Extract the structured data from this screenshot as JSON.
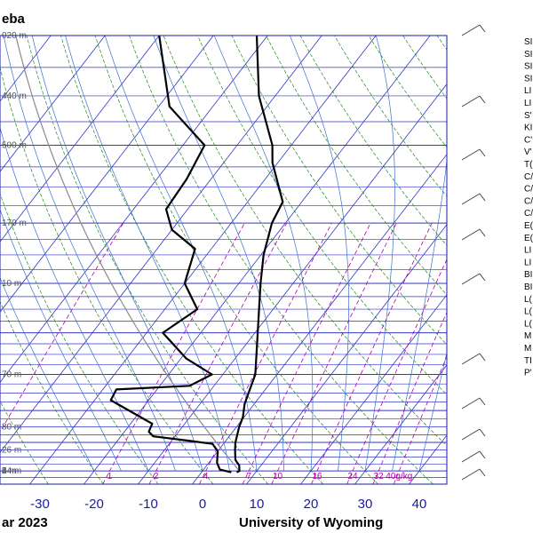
{
  "station_title": "eba",
  "footer_left": "ar 2023",
  "footer_right": "University of Wyoming",
  "colors": {
    "frame": "#1a1aa0",
    "isobar": "#3434c8",
    "isotherm": "#3434c8",
    "dry_adiabat": "#1f8a1f",
    "moist_adiabat": "#3a6fd0",
    "mixing_ratio": "#b000b0",
    "temperature": "#000000",
    "dewpoint": "#000000",
    "parcel": "#8a8a8a"
  },
  "chart_data": {
    "type": "skew-t",
    "title": "eba",
    "xlabel": "",
    "ylabel": "",
    "x_ticks": [
      "-30",
      "-20",
      "-10",
      "0",
      "10",
      "20",
      "30",
      "40"
    ],
    "mixing_ratio_labels": [
      "0.1",
      "1",
      "2",
      "4",
      "7",
      "10",
      "16",
      "24",
      "32",
      "40g/kg"
    ],
    "mixing_ratio_values": [
      0.1,
      1,
      2,
      4,
      7,
      10,
      16,
      24,
      32,
      40
    ],
    "height_labels": [
      {
        "text": "020 m",
        "p": 200
      },
      {
        "text": "440 m",
        "p": 250
      },
      {
        "text": "500 m",
        "p": 300
      },
      {
        "text": "170 m",
        "p": 400
      },
      {
        "text": "10 m",
        "p": 500
      },
      {
        "text": "70 m",
        "p": 700
      },
      {
        "text": "80 m",
        "p": 850
      },
      {
        "text": "54 m",
        "p": 1000
      },
      {
        "text": "26 m",
        "p": 925
      },
      {
        "text": "4 m",
        "p": 1000
      },
      {
        "text": "2 m",
        "p": 1000
      }
    ],
    "height_labels_shown": [
      "020 m",
      "440 m",
      "500 m",
      "170 m",
      "10 m",
      "70 m",
      "80 m",
      "54 m",
      "26 m",
      "4 m",
      "2 m"
    ],
    "temperature_profile": [
      {
        "p": 1005,
        "t": 6.5
      },
      {
        "p": 1000,
        "t": 6.8
      },
      {
        "p": 980,
        "t": 6.0
      },
      {
        "p": 960,
        "t": 4.5
      },
      {
        "p": 925,
        "t": 3.0
      },
      {
        "p": 900,
        "t": 2.0
      },
      {
        "p": 850,
        "t": 0.5
      },
      {
        "p": 820,
        "t": -0.2
      },
      {
        "p": 780,
        "t": -1.8
      },
      {
        "p": 700,
        "t": -4.0
      },
      {
        "p": 600,
        "t": -9.5
      },
      {
        "p": 500,
        "t": -16.0
      },
      {
        "p": 450,
        "t": -19.5
      },
      {
        "p": 400,
        "t": -22.5
      },
      {
        "p": 370,
        "t": -23.5
      },
      {
        "p": 320,
        "t": -31.0
      },
      {
        "p": 300,
        "t": -33.5
      },
      {
        "p": 250,
        "t": -43.0
      },
      {
        "p": 200,
        "t": -52.0
      }
    ],
    "dewpoint_profile": [
      {
        "p": 1005,
        "t": 5.5
      },
      {
        "p": 995,
        "t": 3.0
      },
      {
        "p": 970,
        "t": 1.5
      },
      {
        "p": 930,
        "t": 0.0
      },
      {
        "p": 905,
        "t": -2.0
      },
      {
        "p": 895,
        "t": -6.5
      },
      {
        "p": 880,
        "t": -14.0
      },
      {
        "p": 865,
        "t": -15.5
      },
      {
        "p": 840,
        "t": -16.0
      },
      {
        "p": 770,
        "t": -27.0
      },
      {
        "p": 740,
        "t": -27.5
      },
      {
        "p": 730,
        "t": -14.5
      },
      {
        "p": 700,
        "t": -12.0
      },
      {
        "p": 660,
        "t": -19.0
      },
      {
        "p": 600,
        "t": -27.0
      },
      {
        "p": 550,
        "t": -24.0
      },
      {
        "p": 500,
        "t": -30.0
      },
      {
        "p": 440,
        "t": -33.0
      },
      {
        "p": 410,
        "t": -40.0
      },
      {
        "p": 380,
        "t": -44.0
      },
      {
        "p": 340,
        "t": -44.5
      },
      {
        "p": 300,
        "t": -46.0
      },
      {
        "p": 260,
        "t": -58.0
      },
      {
        "p": 200,
        "t": -70.0
      }
    ],
    "xlim": [
      -40,
      45
    ],
    "ylim": [
      1050,
      200
    ],
    "y_scale": "log",
    "grid": true
  },
  "side_labels": [
    "SI",
    "SI",
    "SI",
    "SI",
    "LI",
    "LI",
    "S'",
    "KI",
    "C'",
    "V'",
    "T(",
    "C/",
    "C/",
    "C/",
    "C/",
    "E(",
    "E(",
    "LI",
    "LI",
    "BI",
    "BI",
    "L(",
    "L(",
    "L(",
    "M",
    "M",
    "TI",
    "P'"
  ]
}
